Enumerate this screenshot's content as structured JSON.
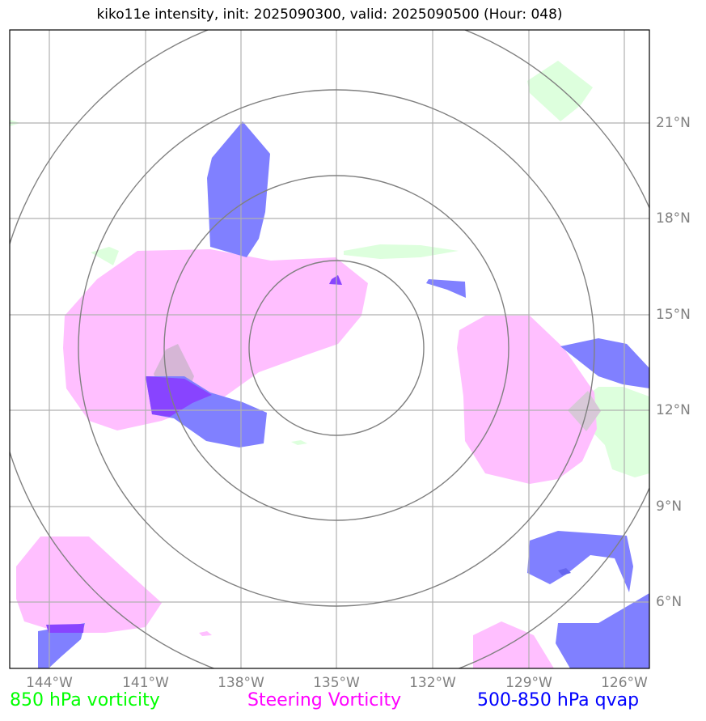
{
  "title": "kiko11e intensity, init: 2025090300, valid: 2025090500 (Hour: 048)",
  "lat_labels": [
    "21°N",
    "18°N",
    "15°N",
    "12°N",
    "9°N",
    "6°N"
  ],
  "lon_labels": [
    "144°W",
    "141°W",
    "138°W",
    "135°W",
    "132°W",
    "129°W",
    "126°W"
  ],
  "legend": {
    "vorticity_850": {
      "label": "850 hPa vorticity",
      "color": "#00ff00"
    },
    "steering": {
      "label": "Steering Vorticity",
      "color": "#ff00ff"
    },
    "qvap": {
      "label": "500-850 hPa qvap",
      "color": "#0000ff"
    }
  },
  "map": {
    "lon_range": [
      "145.0°W",
      "125.0°W"
    ],
    "lat_range": [
      "4.0°N",
      "24.0°N"
    ],
    "storm_center": {
      "lat": "14°N",
      "lon": "135°W"
    },
    "range_rings": 4,
    "fill_colors": {
      "vorticity_850": "#ddffdd",
      "steering": "#ffbfff",
      "qvap": "#8080ff",
      "overlap": "#8844ff"
    }
  }
}
